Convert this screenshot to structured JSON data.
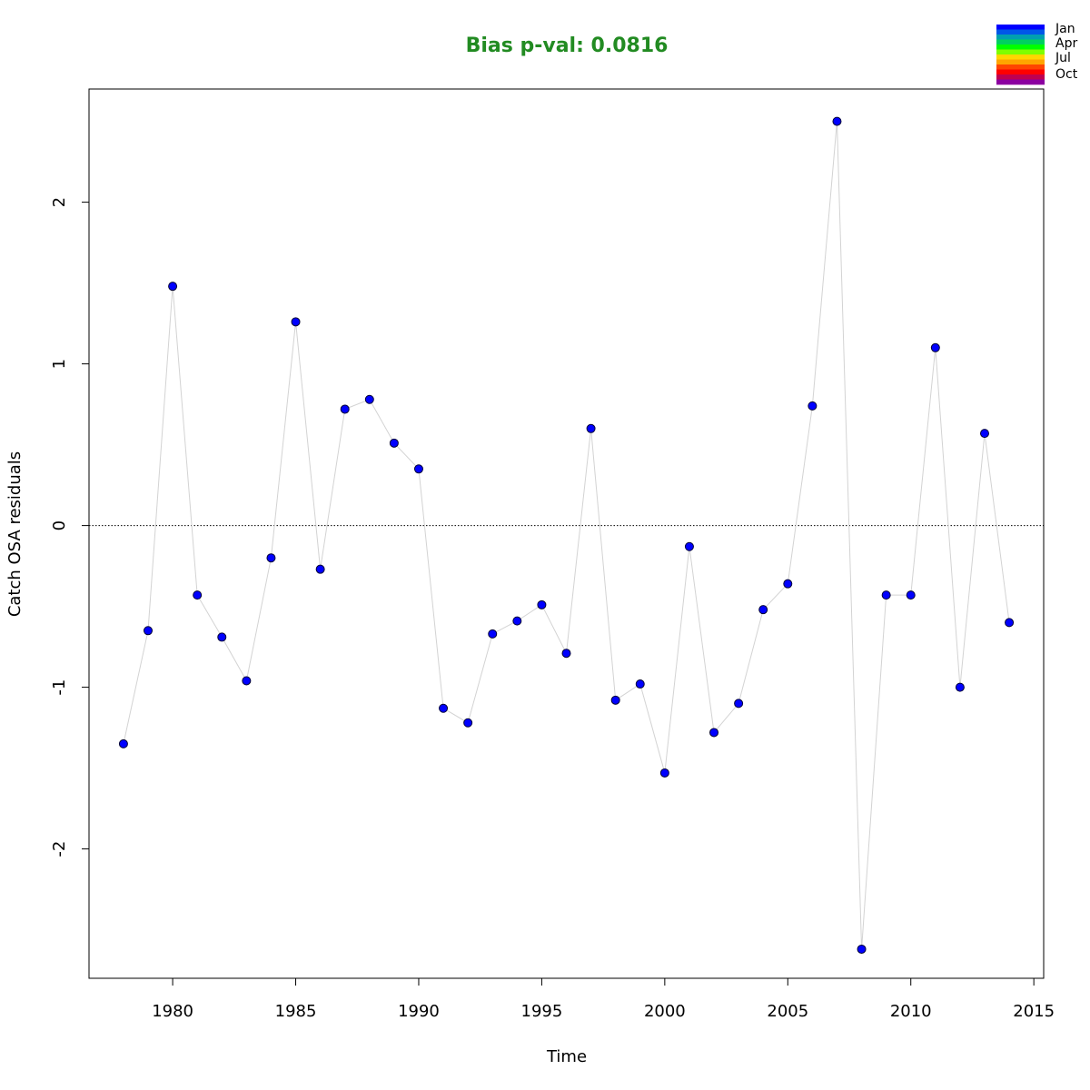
{
  "colors": {
    "title": "#228B22",
    "points": "#0000ff",
    "point_stroke": "#000033",
    "connector": "#d3d3d3",
    "zero_line": "#000000",
    "month_ramp": [
      "#0000ff",
      "#0057e8",
      "#00a0b0",
      "#00d060",
      "#00ff00",
      "#7fff00",
      "#ffd700",
      "#ffa500",
      "#ff4500",
      "#ff0000",
      "#c00050",
      "#8b00a0"
    ]
  },
  "chart_data": {
    "type": "scatter",
    "title": "Bias p-val: 0.0816",
    "xlabel": "Time",
    "ylabel": "Catch OSA residuals",
    "xlim": [
      1976.6,
      2015.4
    ],
    "ylim": [
      -2.8,
      2.7
    ],
    "x_ticks": [
      1980,
      1985,
      1990,
      1995,
      2000,
      2005,
      2010,
      2015
    ],
    "x_tick_labels": [
      "1980",
      "1985",
      "1990",
      "1995",
      "2000",
      "2005",
      "2010",
      "2015"
    ],
    "y_ticks": [
      -2,
      -1,
      0,
      1,
      2
    ],
    "y_tick_labels": [
      "-2",
      "-1",
      "0",
      "1",
      "2"
    ],
    "reference_line_y": 0,
    "grid": false,
    "legend": {
      "placement": "top-right",
      "labels": [
        "Jan",
        "Apr",
        "Jul",
        "Oct"
      ]
    },
    "x": [
      1978,
      1979,
      1980,
      1981,
      1982,
      1983,
      1984,
      1985,
      1986,
      1987,
      1988,
      1989,
      1990,
      1991,
      1992,
      1993,
      1994,
      1995,
      1996,
      1997,
      1998,
      1999,
      2000,
      2001,
      2002,
      2003,
      2004,
      2005,
      2006,
      2007,
      2008,
      2009,
      2010,
      2011,
      2012,
      2013,
      2014
    ],
    "y": [
      -1.35,
      -0.65,
      1.48,
      -0.43,
      -0.69,
      -0.96,
      -0.2,
      1.26,
      -0.27,
      0.72,
      0.78,
      0.51,
      0.35,
      -1.13,
      -1.22,
      -0.67,
      -0.59,
      -0.49,
      -0.79,
      0.6,
      -1.08,
      -0.98,
      -1.53,
      -0.13,
      -1.28,
      -1.1,
      -0.52,
      -0.36,
      0.74,
      2.5,
      -2.62,
      -0.43,
      -0.43,
      1.1,
      -1.0,
      0.57,
      -0.6
    ]
  }
}
